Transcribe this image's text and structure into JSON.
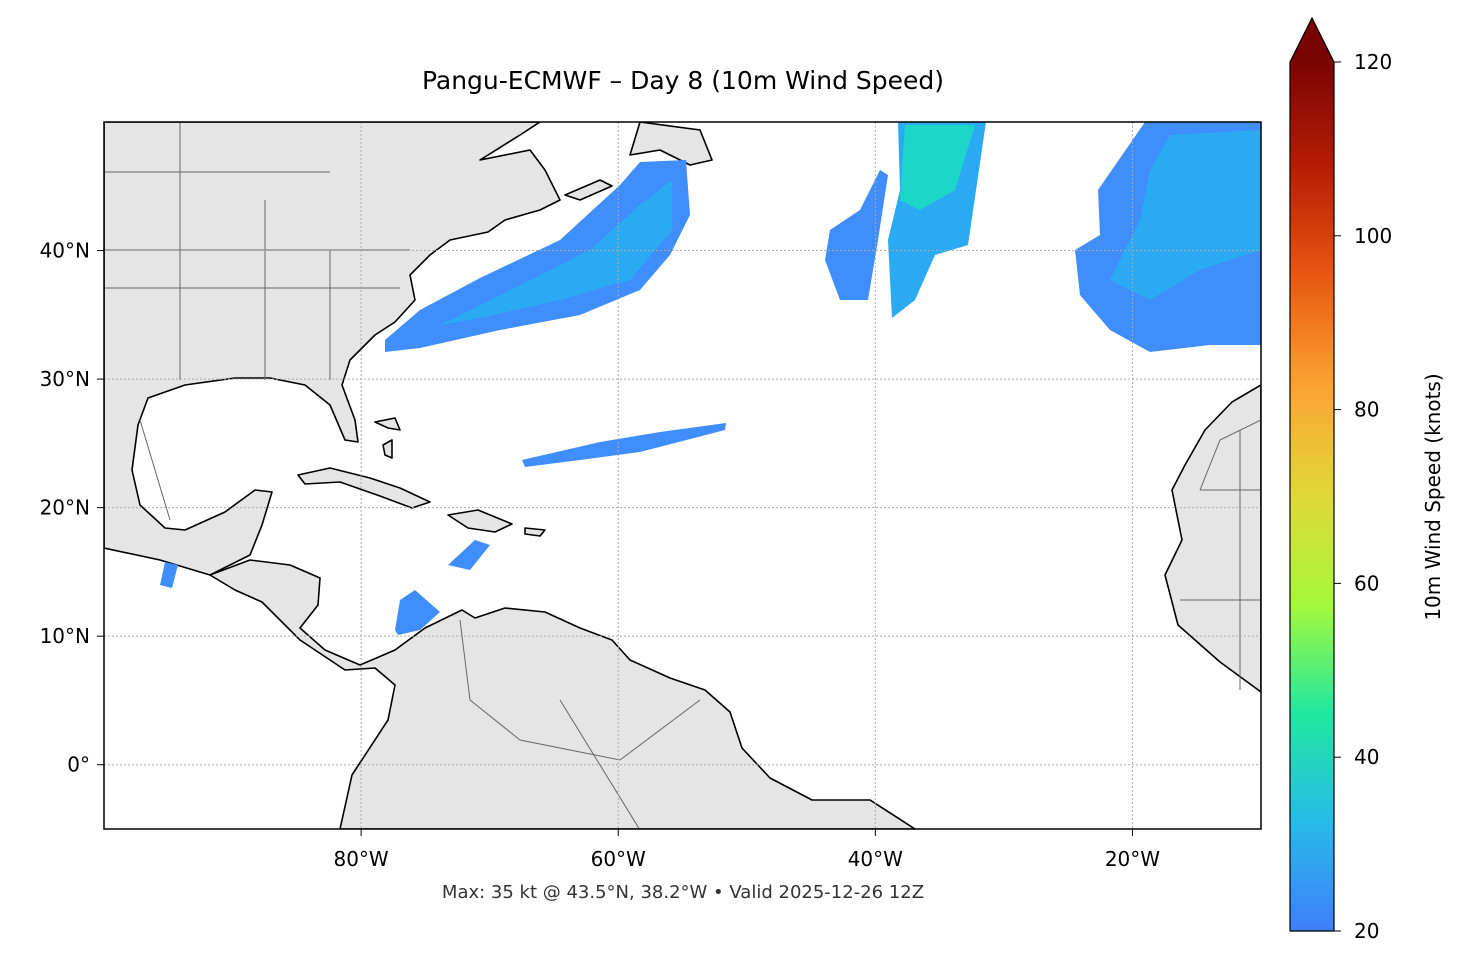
{
  "map": {
    "title": "Pangu-ECMWF – Day 8 (10m Wind Speed)",
    "footnote": "Max: 35 kt @ 43.5°N, 38.2°W • Valid 2025-12-26 12Z",
    "xlim": [
      -100,
      -10
    ],
    "ylim": [
      -5,
      50
    ],
    "xticks": [
      {
        "value": -80,
        "label": "80°W"
      },
      {
        "value": -60,
        "label": "60°W"
      },
      {
        "value": -40,
        "label": "40°W"
      },
      {
        "value": -20,
        "label": "20°W"
      }
    ],
    "yticks": [
      {
        "value": 0,
        "label": "0°"
      },
      {
        "value": 10,
        "label": "10°N"
      },
      {
        "value": 20,
        "label": "20°N"
      },
      {
        "value": 30,
        "label": "30°N"
      },
      {
        "value": 40,
        "label": "40°N"
      }
    ],
    "grid": true,
    "colorbar": {
      "label": "10m Wind Speed (knots)",
      "lim": [
        20,
        120
      ],
      "ticks": [
        20,
        40,
        60,
        80,
        100,
        120
      ],
      "colormap": [
        "#3f7efc",
        "#27bbe8",
        "#20e8a0",
        "#a4f83c",
        "#e0d838",
        "#fba532",
        "#e85a12",
        "#b81e04",
        "#7a0403"
      ]
    }
  }
}
